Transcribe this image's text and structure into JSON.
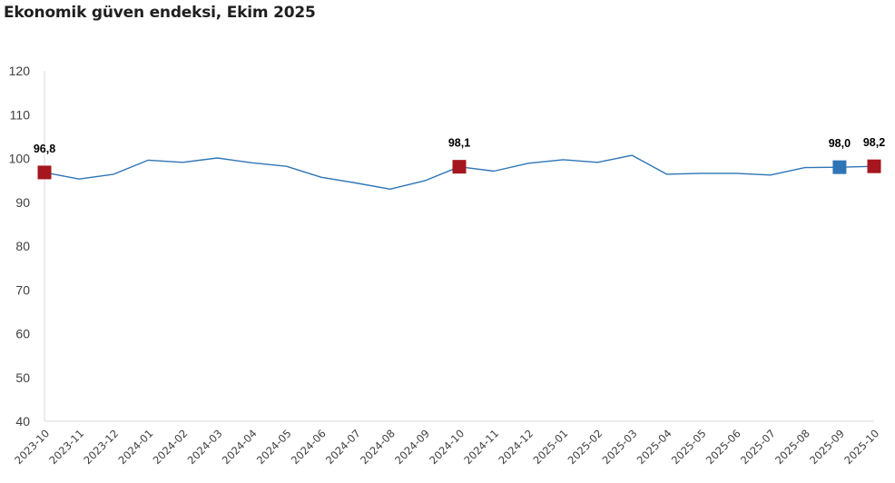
{
  "title": "Ekonomik güven endeksi, Ekim 2025",
  "colors": {
    "line": "#2E75B6",
    "highlight_red": "#A6161E",
    "highlight_blue": "#2E75B6",
    "axis": "#d9d9d9"
  },
  "chart_data": {
    "type": "line",
    "title": "Ekonomik güven endeksi, Ekim 2025",
    "xlabel": "",
    "ylabel": "",
    "ylim": [
      40,
      120
    ],
    "yticks": [
      40,
      50,
      60,
      70,
      80,
      90,
      100,
      110,
      120
    ],
    "grid": false,
    "legend": null,
    "categories": [
      "2023-10",
      "2023-11",
      "2023-12",
      "2024-01",
      "2024-02",
      "2024-03",
      "2024-04",
      "2024-05",
      "2024-06",
      "2024-07",
      "2024-08",
      "2024-09",
      "2024-10",
      "2024-11",
      "2024-12",
      "2025-01",
      "2025-02",
      "2025-03",
      "2025-04",
      "2025-05",
      "2025-06",
      "2025-07",
      "2025-08",
      "2025-09",
      "2025-10"
    ],
    "series": [
      {
        "name": "Ekonomik güven endeksi",
        "values": [
          96.8,
          95.3,
          96.4,
          99.6,
          99.1,
          100.1,
          99.0,
          98.2,
          95.7,
          94.4,
          93.0,
          94.9,
          98.1,
          97.1,
          98.9,
          99.7,
          99.1,
          100.7,
          96.4,
          96.6,
          96.6,
          96.2,
          97.9,
          98.0,
          98.2
        ]
      }
    ],
    "annotations": [
      {
        "category": "2023-10",
        "label": "96,8",
        "marker": "square",
        "color": "#A6161E"
      },
      {
        "category": "2024-10",
        "label": "98,1",
        "marker": "square",
        "color": "#A6161E"
      },
      {
        "category": "2025-09",
        "label": "98,0",
        "marker": "square",
        "color": "#2E75B6"
      },
      {
        "category": "2025-10",
        "label": "98,2",
        "marker": "square",
        "color": "#A6161E"
      }
    ]
  }
}
